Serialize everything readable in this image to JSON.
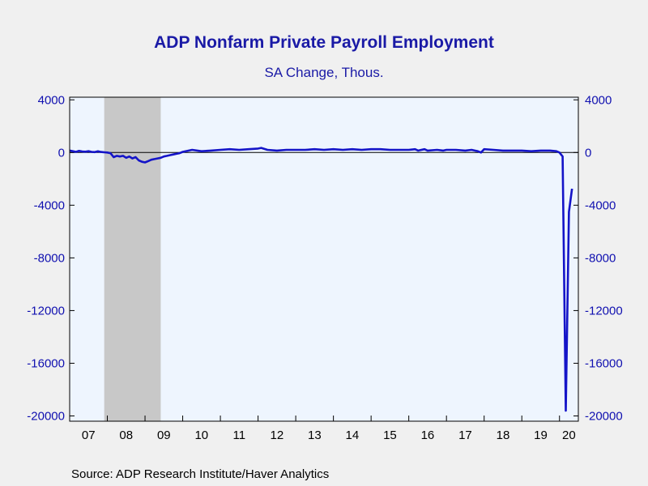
{
  "chart_data": {
    "type": "line",
    "title": "ADP Nonfarm Private Payroll Employment",
    "subtitle": "SA Change, Thous.",
    "source": "Source:  ADP Research Institute/Haver Analytics",
    "ylim": [
      -20400,
      4200
    ],
    "xlim": [
      2007.0,
      2020.5
    ],
    "y_ticks": [
      4000,
      0,
      -4000,
      -8000,
      -12000,
      -16000,
      -20000
    ],
    "y_tick_labels": [
      "4000",
      "0",
      "-4000",
      "-8000",
      "-12000",
      "-16000",
      "-20000"
    ],
    "x_tick_labels": [
      "07",
      "08",
      "09",
      "10",
      "11",
      "12",
      "13",
      "14",
      "15",
      "16",
      "17",
      "18",
      "19",
      "20"
    ],
    "recession": [
      2007.917,
      2009.417
    ],
    "grid": false,
    "colors": {
      "line": "#1414c8",
      "recession": "#c8c8c8",
      "plot_bg": "#eef5fe",
      "text": "#1a1aa6"
    },
    "series": [
      {
        "x": [
          2007.0,
          2007.083,
          2007.167,
          2007.25,
          2007.333,
          2007.417,
          2007.5,
          2007.583,
          2007.667,
          2007.75,
          2007.833,
          2007.917,
          2008.0,
          2008.083,
          2008.167,
          2008.25,
          2008.333,
          2008.417,
          2008.5,
          2008.583,
          2008.667,
          2008.75,
          2008.833,
          2008.917,
          2009.0,
          2009.083,
          2009.167,
          2009.25,
          2009.333,
          2009.417,
          2009.5,
          2009.583,
          2009.667,
          2009.75,
          2009.833,
          2009.917,
          2010.0,
          2010.25,
          2010.5,
          2010.75,
          2011.0,
          2011.25,
          2011.5,
          2011.75,
          2012.0,
          2012.083,
          2012.25,
          2012.5,
          2012.75,
          2013.0,
          2013.25,
          2013.5,
          2013.75,
          2014.0,
          2014.25,
          2014.5,
          2014.75,
          2015.0,
          2015.25,
          2015.5,
          2015.75,
          2016.0,
          2016.167,
          2016.25,
          2016.417,
          2016.5,
          2016.75,
          2016.917,
          2017.0,
          2017.25,
          2017.5,
          2017.667,
          2017.75,
          2017.833,
          2017.917,
          2018.0,
          2018.25,
          2018.5,
          2018.75,
          2019.0,
          2019.25,
          2019.5,
          2019.75,
          2019.917,
          2020.0,
          2020.083,
          2020.167,
          2020.25,
          2020.333
        ],
        "values": [
          150,
          100,
          50,
          120,
          80,
          60,
          100,
          50,
          30,
          90,
          40,
          20,
          0,
          -50,
          -350,
          -250,
          -300,
          -250,
          -400,
          -300,
          -450,
          -350,
          -600,
          -700,
          -750,
          -650,
          -550,
          -500,
          -450,
          -400,
          -300,
          -250,
          -200,
          -150,
          -100,
          -50,
          50,
          200,
          100,
          150,
          200,
          250,
          200,
          250,
          300,
          350,
          200,
          150,
          200,
          200,
          200,
          250,
          200,
          250,
          200,
          250,
          200,
          250,
          250,
          200,
          200,
          200,
          250,
          150,
          250,
          150,
          200,
          150,
          200,
          200,
          150,
          200,
          150,
          100,
          0,
          250,
          200,
          150,
          150,
          150,
          100,
          150,
          150,
          100,
          0,
          -300,
          -19600,
          -4500,
          -2750
        ]
      }
    ]
  }
}
